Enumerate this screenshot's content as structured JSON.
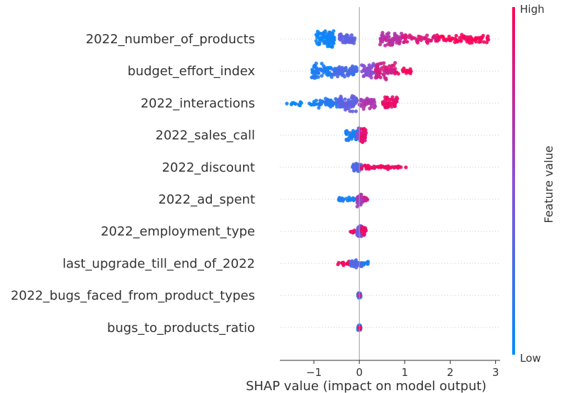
{
  "chart_data": {
    "type": "scatter",
    "subtype": "shap-beeswarm",
    "title": "",
    "xlabel": "SHAP value (impact on model output)",
    "xlim": [
      -1.75,
      3.1
    ],
    "xticks": [
      "−1",
      "0",
      "1",
      "2",
      "3"
    ],
    "xtick_values": [
      -1,
      0,
      1,
      2,
      3
    ],
    "colorbar": {
      "title": "Feature value",
      "high_label": "High",
      "low_label": "Low",
      "low_color": "#008bfb",
      "high_color": "#ff0052"
    },
    "features": [
      {
        "name": "2022_number_of_products",
        "groups": [
          {
            "from": -0.95,
            "to": -0.55,
            "n": 95,
            "v": 0.05,
            "spread": 1.0
          },
          {
            "from": -0.45,
            "to": -0.1,
            "n": 45,
            "v": 0.35,
            "spread": 0.55
          },
          {
            "from": 0.45,
            "to": 0.95,
            "n": 60,
            "v": 0.7,
            "spread": 0.8
          },
          {
            "from": 0.95,
            "to": 1.75,
            "n": 45,
            "v": 0.85,
            "spread": 0.5
          },
          {
            "from": 1.75,
            "to": 2.85,
            "n": 65,
            "v": 0.97,
            "spread": 0.55
          }
        ]
      },
      {
        "name": "budget_effort_index",
        "groups": [
          {
            "from": -1.05,
            "to": -0.6,
            "n": 60,
            "v": 0.1,
            "spread": 0.9
          },
          {
            "from": -0.6,
            "to": -0.05,
            "n": 80,
            "v": 0.25,
            "spread": 0.7
          },
          {
            "from": 0.05,
            "to": 0.4,
            "n": 55,
            "v": 0.5,
            "spread": 0.85
          },
          {
            "from": 0.35,
            "to": 0.8,
            "n": 65,
            "v": 0.8,
            "spread": 1.0
          },
          {
            "from": 0.8,
            "to": 1.15,
            "n": 18,
            "v": 0.95,
            "spread": 0.4
          }
        ]
      },
      {
        "name": "2022_interactions",
        "groups": [
          {
            "from": -1.6,
            "to": -0.9,
            "n": 22,
            "v": 0.03,
            "spread": 0.3
          },
          {
            "from": -0.9,
            "to": -0.4,
            "n": 45,
            "v": 0.15,
            "spread": 0.55
          },
          {
            "from": -0.45,
            "to": -0.05,
            "n": 70,
            "v": 0.35,
            "spread": 0.95
          },
          {
            "from": 0.0,
            "to": 0.35,
            "n": 40,
            "v": 0.65,
            "spread": 0.7
          },
          {
            "from": 0.5,
            "to": 0.85,
            "n": 45,
            "v": 0.92,
            "spread": 0.75
          }
        ]
      },
      {
        "name": "2022_sales_call",
        "groups": [
          {
            "from": -0.3,
            "to": -0.05,
            "n": 45,
            "v": 0.1,
            "spread": 0.7
          },
          {
            "from": -0.05,
            "to": 0.05,
            "n": 30,
            "v": 0.5,
            "spread": 0.9
          },
          {
            "from": 0.02,
            "to": 0.15,
            "n": 35,
            "v": 0.9,
            "spread": 0.9
          }
        ]
      },
      {
        "name": "2022_discount",
        "groups": [
          {
            "from": -0.15,
            "to": 0.05,
            "n": 50,
            "v": 0.3,
            "spread": 0.5
          },
          {
            "from": 0.05,
            "to": 0.35,
            "n": 22,
            "v": 0.9,
            "spread": 0.25
          },
          {
            "from": 0.4,
            "to": 1.05,
            "n": 30,
            "v": 0.95,
            "spread": 0.25
          }
        ]
      },
      {
        "name": "2022_ad_spent",
        "groups": [
          {
            "from": -0.45,
            "to": -0.05,
            "n": 25,
            "v": 0.08,
            "spread": 0.25
          },
          {
            "from": -0.05,
            "to": 0.08,
            "n": 45,
            "v": 0.6,
            "spread": 0.8
          },
          {
            "from": 0.08,
            "to": 0.2,
            "n": 10,
            "v": 0.8,
            "spread": 0.3
          }
        ]
      },
      {
        "name": "2022_employment_type",
        "groups": [
          {
            "from": -0.2,
            "to": -0.05,
            "n": 10,
            "v": 0.9,
            "spread": 0.2
          },
          {
            "from": -0.05,
            "to": 0.05,
            "n": 45,
            "v": 0.4,
            "spread": 0.6
          },
          {
            "from": 0.05,
            "to": 0.15,
            "n": 25,
            "v": 0.9,
            "spread": 0.6
          }
        ]
      },
      {
        "name": "last_upgrade_till_end_of_2022",
        "groups": [
          {
            "from": -0.55,
            "to": -0.2,
            "n": 14,
            "v": 0.95,
            "spread": 0.25
          },
          {
            "from": -0.2,
            "to": 0.05,
            "n": 35,
            "v": 0.3,
            "spread": 0.5
          },
          {
            "from": 0.05,
            "to": 0.2,
            "n": 10,
            "v": 0.1,
            "spread": 0.2
          }
        ]
      },
      {
        "name": "2022_bugs_faced_from_product_types",
        "groups": [
          {
            "from": -0.03,
            "to": 0.03,
            "n": 30,
            "v": 0.2,
            "spread": 0.3
          },
          {
            "from": -0.02,
            "to": 0.02,
            "n": 6,
            "v": 0.75,
            "spread": 0.2
          }
        ]
      },
      {
        "name": "bugs_to_products_ratio",
        "groups": [
          {
            "from": -0.03,
            "to": 0.03,
            "n": 30,
            "v": 0.15,
            "spread": 0.3
          },
          {
            "from": -0.02,
            "to": 0.02,
            "n": 6,
            "v": 0.9,
            "spread": 0.2
          }
        ]
      }
    ]
  }
}
